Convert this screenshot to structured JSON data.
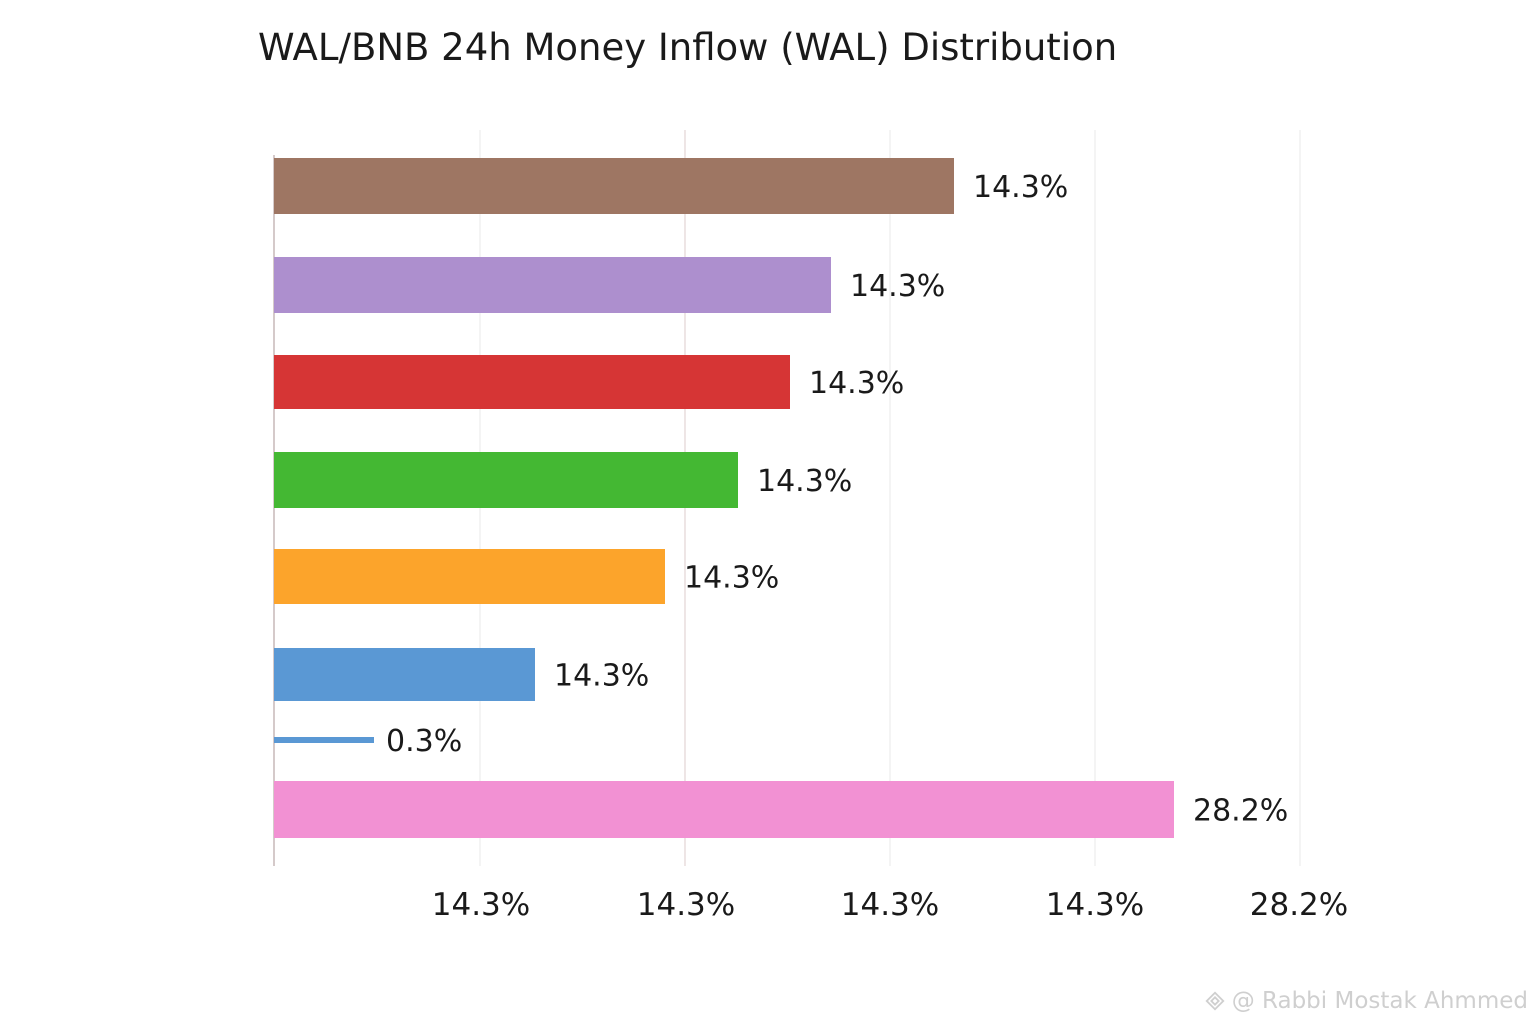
{
  "chart_data": {
    "type": "bar",
    "orientation": "horizontal",
    "title": "WAL/BNB 24h Money Inflow (WAL) Distribution",
    "bars": [
      {
        "value": 14.3,
        "label": "14.3%",
        "color": "#9e7663"
      },
      {
        "value": 14.3,
        "label": "14.3%",
        "color": "#ad8fce"
      },
      {
        "value": 14.3,
        "label": "14.3%",
        "color": "#d63535"
      },
      {
        "value": 14.3,
        "label": "14.3%",
        "color": "#44b833"
      },
      {
        "value": 14.3,
        "label": "14.3%",
        "color": "#fca42b"
      },
      {
        "value": 14.3,
        "label": "14.3%",
        "color": "#5a98d4"
      },
      {
        "value": 0.3,
        "label": "0.3%",
        "color": "#5a98d4"
      },
      {
        "value": 28.2,
        "label": "28.2%",
        "color": "#f291d3"
      }
    ],
    "x_tick_labels": [
      "14.3%",
      "14.3%",
      "14.3%",
      "14.3%",
      "28.2%"
    ],
    "grid": true
  },
  "watermark": {
    "text": "@ Rabbi  Mostak Ahmmed",
    "logo_icon": "binance-diamond-icon"
  }
}
